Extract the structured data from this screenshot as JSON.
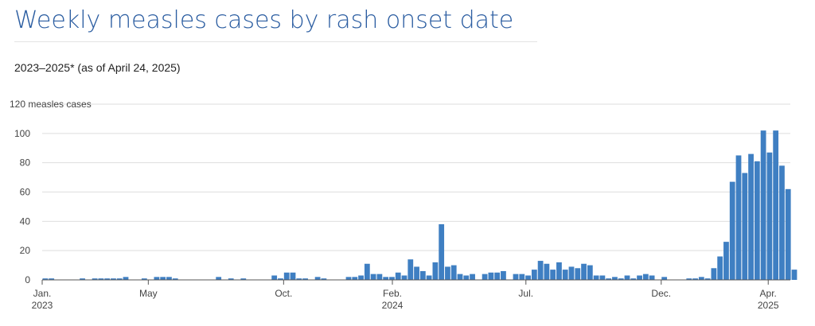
{
  "header": {
    "title": "Weekly measles cases by rash onset date",
    "subtitle": "2023–2025* (as of April 24, 2025)"
  },
  "colors": {
    "bar": "#3f7fc2",
    "grid": "#dedede",
    "axis": "#555555",
    "title": "#2b5da1"
  },
  "chart_data": {
    "type": "bar",
    "title": "Weekly measles cases by rash onset date",
    "subtitle": "2023–2025* (as of April 24, 2025)",
    "ylabel": "measles cases",
    "ylim": [
      0,
      120
    ],
    "yticks": [
      0,
      20,
      40,
      60,
      80,
      100,
      120
    ],
    "ytick_labels": [
      "0",
      "20",
      "40",
      "60",
      "80",
      "100",
      "120 measles cases"
    ],
    "grid": true,
    "x_start": "2023-01-01",
    "x_end": "2025-04-26",
    "xtick_labels": [
      {
        "date": "2023-01-01",
        "label": "Jan.",
        "sublabel": "2023"
      },
      {
        "date": "2023-05-01",
        "label": "May",
        "sublabel": ""
      },
      {
        "date": "2023-10-01",
        "label": "Oct.",
        "sublabel": ""
      },
      {
        "date": "2024-02-01",
        "label": "Feb.",
        "sublabel": "2024"
      },
      {
        "date": "2024-07-01",
        "label": "Jul.",
        "sublabel": ""
      },
      {
        "date": "2024-12-01",
        "label": "Dec.",
        "sublabel": ""
      },
      {
        "date": "2025-04-01",
        "label": "Apr.",
        "sublabel": "2025"
      }
    ],
    "series": [
      {
        "values": [
          1,
          1,
          0,
          0,
          0,
          0,
          1,
          0,
          1,
          1,
          1,
          1,
          1,
          2,
          0,
          0,
          1,
          0,
          2,
          2,
          2,
          1,
          0,
          0,
          0,
          0,
          0,
          0,
          2,
          0,
          1,
          0,
          1,
          0,
          0,
          0,
          0,
          3,
          1,
          5,
          5,
          1,
          1,
          0,
          2,
          1,
          0,
          0,
          0,
          2,
          2,
          3,
          11,
          4,
          4,
          2,
          2,
          5,
          3,
          14,
          9,
          6,
          3,
          12,
          38,
          9,
          10,
          4,
          3,
          4,
          0,
          4,
          5,
          5,
          6,
          0,
          4,
          4,
          3,
          7,
          13,
          11,
          7,
          12,
          7,
          9,
          8,
          11,
          10,
          3,
          3,
          1,
          2,
          1,
          3,
          1,
          3,
          4,
          3,
          0,
          2,
          0,
          0,
          0,
          1,
          1,
          2,
          1,
          8,
          16,
          26,
          67,
          85,
          73,
          86,
          81,
          102,
          87,
          102,
          78,
          62,
          7
        ]
      }
    ]
  }
}
